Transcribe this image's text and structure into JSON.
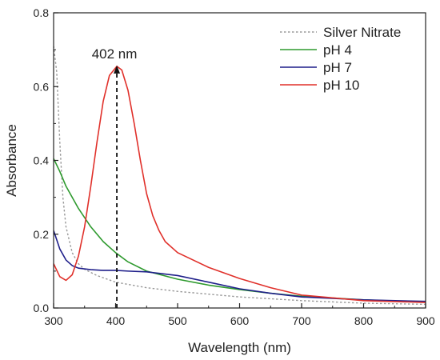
{
  "chart_data": {
    "type": "line",
    "title": "",
    "xlabel": "Wavelength (nm)",
    "ylabel": "Absorbance",
    "xlim": [
      300,
      900
    ],
    "ylim": [
      0.0,
      0.8
    ],
    "x_ticks": [
      300,
      400,
      500,
      600,
      700,
      800,
      900
    ],
    "y_ticks": [
      0.0,
      0.2,
      0.4,
      0.6,
      0.8
    ],
    "x_tick_labels": [
      "300",
      "400",
      "500",
      "600",
      "700",
      "800",
      "900"
    ],
    "y_tick_labels": [
      "0.0",
      "0.2",
      "0.4",
      "0.6",
      "0.8"
    ],
    "grid": false,
    "legend_position": "top-right",
    "annotation": {
      "text": "402 nm",
      "x": 402,
      "y": 0.655
    },
    "series": [
      {
        "name": "Silver Nitrate",
        "color": "#999999",
        "style": "dotted",
        "points": [
          [
            300,
            0.71
          ],
          [
            305,
            0.64
          ],
          [
            310,
            0.45
          ],
          [
            315,
            0.3
          ],
          [
            320,
            0.22
          ],
          [
            330,
            0.15
          ],
          [
            340,
            0.12
          ],
          [
            350,
            0.105
          ],
          [
            370,
            0.088
          ],
          [
            400,
            0.07
          ],
          [
            450,
            0.055
          ],
          [
            500,
            0.045
          ],
          [
            600,
            0.03
          ],
          [
            700,
            0.02
          ],
          [
            800,
            0.013
          ],
          [
            900,
            0.01
          ]
        ]
      },
      {
        "name": "pH 4",
        "color": "#2e9a2e",
        "style": "solid",
        "points": [
          [
            300,
            0.405
          ],
          [
            310,
            0.37
          ],
          [
            320,
            0.33
          ],
          [
            340,
            0.27
          ],
          [
            360,
            0.22
          ],
          [
            380,
            0.18
          ],
          [
            400,
            0.15
          ],
          [
            420,
            0.125
          ],
          [
            450,
            0.1
          ],
          [
            500,
            0.078
          ],
          [
            550,
            0.062
          ],
          [
            600,
            0.05
          ],
          [
            650,
            0.04
          ],
          [
            700,
            0.032
          ],
          [
            800,
            0.022
          ],
          [
            900,
            0.016
          ]
        ]
      },
      {
        "name": "pH 7",
        "color": "#1f1f8a",
        "style": "solid",
        "points": [
          [
            300,
            0.21
          ],
          [
            305,
            0.185
          ],
          [
            310,
            0.16
          ],
          [
            320,
            0.13
          ],
          [
            330,
            0.115
          ],
          [
            340,
            0.108
          ],
          [
            360,
            0.104
          ],
          [
            380,
            0.102
          ],
          [
            400,
            0.102
          ],
          [
            420,
            0.1
          ],
          [
            450,
            0.098
          ],
          [
            500,
            0.088
          ],
          [
            550,
            0.07
          ],
          [
            600,
            0.052
          ],
          [
            650,
            0.04
          ],
          [
            700,
            0.03
          ],
          [
            800,
            0.022
          ],
          [
            900,
            0.018
          ]
        ]
      },
      {
        "name": "pH 10",
        "color": "#e0302a",
        "style": "solid",
        "points": [
          [
            300,
            0.12
          ],
          [
            310,
            0.085
          ],
          [
            320,
            0.075
          ],
          [
            330,
            0.09
          ],
          [
            340,
            0.14
          ],
          [
            350,
            0.22
          ],
          [
            360,
            0.33
          ],
          [
            370,
            0.45
          ],
          [
            380,
            0.56
          ],
          [
            390,
            0.63
          ],
          [
            402,
            0.655
          ],
          [
            410,
            0.645
          ],
          [
            420,
            0.59
          ],
          [
            430,
            0.5
          ],
          [
            440,
            0.4
          ],
          [
            450,
            0.31
          ],
          [
            460,
            0.25
          ],
          [
            470,
            0.21
          ],
          [
            480,
            0.18
          ],
          [
            500,
            0.15
          ],
          [
            550,
            0.11
          ],
          [
            600,
            0.08
          ],
          [
            650,
            0.055
          ],
          [
            700,
            0.035
          ],
          [
            800,
            0.02
          ],
          [
            900,
            0.015
          ]
        ]
      }
    ]
  }
}
